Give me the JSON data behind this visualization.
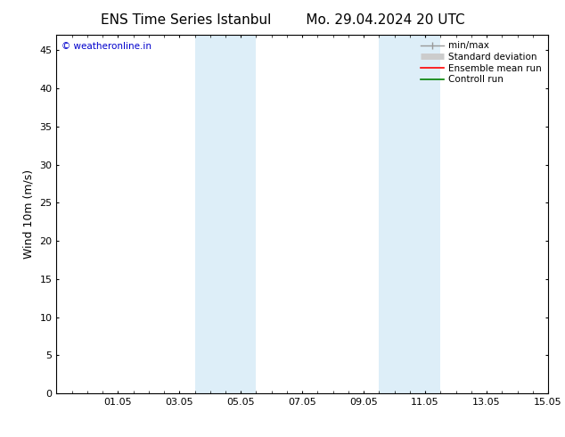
{
  "title_left": "ENS Time Series Istanbul",
  "title_right": "Mo. 29.04.2024 20 UTC",
  "ylabel": "Wind 10m (m/s)",
  "ylim": [
    0,
    47
  ],
  "yticks": [
    0,
    5,
    10,
    15,
    20,
    25,
    30,
    35,
    40,
    45
  ],
  "xlim": [
    0,
    16
  ],
  "xtick_positions": [
    2,
    4,
    6,
    8,
    10,
    12,
    14,
    16
  ],
  "xtick_labels": [
    "01.05",
    "03.05",
    "05.05",
    "07.05",
    "09.05",
    "11.05",
    "13.05",
    "15.05"
  ],
  "shaded_regions": [
    {
      "xmin": 4.5,
      "xmax": 6.5
    },
    {
      "xmin": 10.5,
      "xmax": 12.5
    }
  ],
  "shade_color": "#ddeef8",
  "background_color": "#ffffff",
  "watermark_text": "© weatheronline.in",
  "watermark_color": "#0000cc",
  "legend_entries": [
    {
      "label": "min/max",
      "color": "#999999",
      "lw": 1.0,
      "style": "errorbar"
    },
    {
      "label": "Standard deviation",
      "color": "#cccccc",
      "lw": 5,
      "style": "thick"
    },
    {
      "label": "Ensemble mean run",
      "color": "#ff0000",
      "lw": 1.2,
      "style": "line"
    },
    {
      "label": "Controll run",
      "color": "#008000",
      "lw": 1.2,
      "style": "line"
    }
  ],
  "title_fontsize": 11,
  "tick_fontsize": 8,
  "ylabel_fontsize": 9,
  "legend_fontsize": 7.5,
  "watermark_fontsize": 7.5
}
